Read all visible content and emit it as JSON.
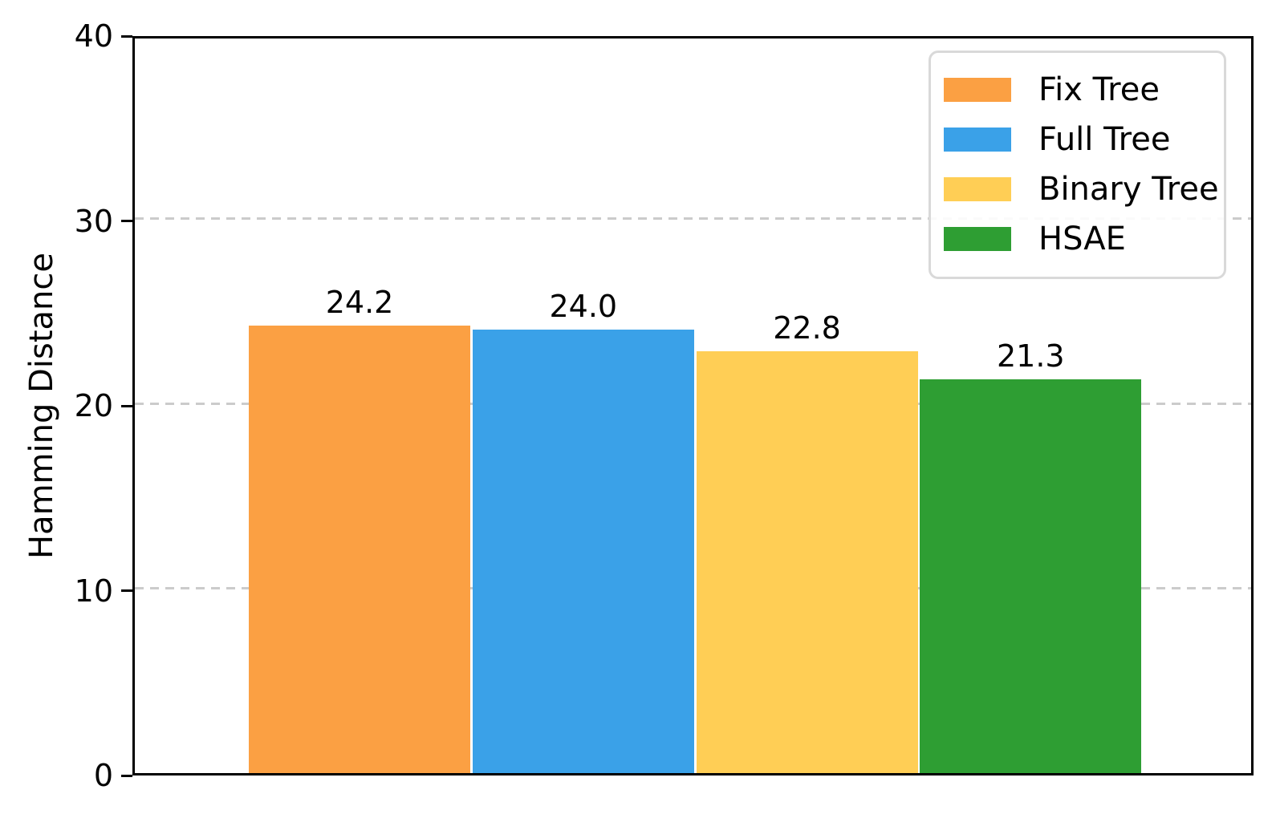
{
  "chart_data": {
    "type": "bar",
    "title": "",
    "xlabel": "",
    "ylabel": "Hamming Distance",
    "ylim": [
      0,
      40
    ],
    "yticks": [
      0,
      10,
      20,
      30,
      40
    ],
    "gridline_values": [
      10,
      20,
      30
    ],
    "grid_style": "dashed",
    "grid_on": true,
    "legend_position": "upper-right",
    "categories": [
      "Fix Tree",
      "Full Tree",
      "Binary Tree",
      "HSAE"
    ],
    "series": [
      {
        "name": "Fix Tree",
        "value": 24.2,
        "value_label": "24.2",
        "color": "#FBA043"
      },
      {
        "name": "Full Tree",
        "value": 24.0,
        "value_label": "24.0",
        "color": "#3AA1E8"
      },
      {
        "name": "Binary Tree",
        "value": 22.8,
        "value_label": "22.8",
        "color": "#FFCE55"
      },
      {
        "name": "HSAE",
        "value": 21.3,
        "value_label": "21.3",
        "color": "#2E9E33"
      }
    ]
  },
  "colors": {
    "background": "#ffffff",
    "spine": "#000000",
    "grid": "#cbcbcb",
    "text": "#000000",
    "legend_border": "#d9d9d9"
  }
}
